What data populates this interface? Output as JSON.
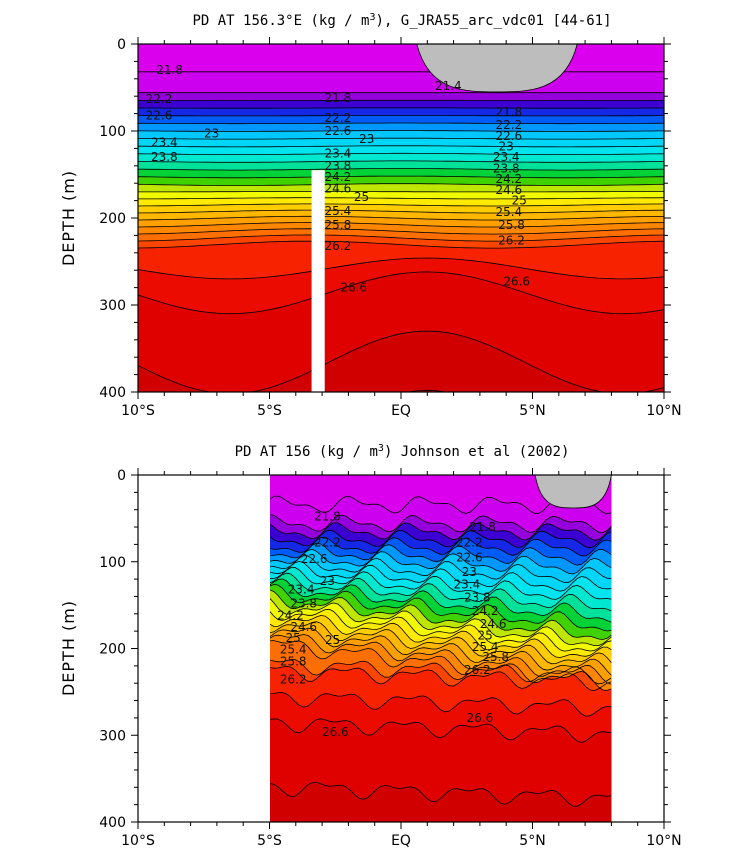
{
  "chart_data": [
    {
      "type": "contour",
      "title_text": "PD AT 156.3°E (kg / m",
      "title_sup": "3",
      "title_rest": "), G_JRA55_arc_vdc01 [44-61]",
      "ylabel": "DEPTH (m)",
      "xlim": [
        -10,
        10
      ],
      "ylim": [
        400,
        0
      ],
      "x_ticks": [
        {
          "value": -10,
          "label": "10°S"
        },
        {
          "value": -5,
          "label": "5°S"
        },
        {
          "value": 0,
          "label": "EQ"
        },
        {
          "value": 5,
          "label": "5°N"
        },
        {
          "value": 10,
          "label": "10°N"
        }
      ],
      "y_ticks": [
        {
          "value": 0,
          "label": "0"
        },
        {
          "value": 100,
          "label": "100"
        },
        {
          "value": 200,
          "label": "200"
        },
        {
          "value": 300,
          "label": "300"
        },
        {
          "value": 400,
          "label": "400"
        }
      ],
      "contour_interval": 0.2,
      "data_x_range": [
        -10,
        10
      ],
      "masked_column": {
        "x": [
          -3.4,
          -2.9
        ],
        "depth": [
          145,
          400
        ]
      },
      "land_patch": {
        "x": [
          0.6,
          6.7
        ],
        "depth": [
          0,
          55
        ]
      },
      "contour_labels": [
        {
          "x": -8.8,
          "depth": 30,
          "label": "21.8"
        },
        {
          "x": 1.8,
          "depth": 48,
          "label": "21.4"
        },
        {
          "x": -2.4,
          "depth": 62,
          "label": "21.8"
        },
        {
          "x": 4.1,
          "depth": 78,
          "label": "21.8"
        },
        {
          "x": -9.2,
          "depth": 63,
          "label": "22.2"
        },
        {
          "x": -9.2,
          "depth": 82,
          "label": "22.6"
        },
        {
          "x": -2.4,
          "depth": 85,
          "label": "22.2"
        },
        {
          "x": -2.4,
          "depth": 100,
          "label": "22.6"
        },
        {
          "x": 4.1,
          "depth": 93,
          "label": "22.2"
        },
        {
          "x": 4.1,
          "depth": 106,
          "label": "22.6"
        },
        {
          "x": -9.0,
          "depth": 113,
          "label": "23.4"
        },
        {
          "x": -7.2,
          "depth": 103,
          "label": "23"
        },
        {
          "x": -1.3,
          "depth": 109,
          "label": "23"
        },
        {
          "x": 4.0,
          "depth": 118,
          "label": "23"
        },
        {
          "x": -9.0,
          "depth": 130,
          "label": "23.8"
        },
        {
          "x": -2.4,
          "depth": 126,
          "label": "23.4"
        },
        {
          "x": -2.4,
          "depth": 140,
          "label": "23.8"
        },
        {
          "x": 4.0,
          "depth": 130,
          "label": "23.4"
        },
        {
          "x": 4.0,
          "depth": 143,
          "label": "23.8"
        },
        {
          "x": -2.4,
          "depth": 153,
          "label": "24.2"
        },
        {
          "x": -2.4,
          "depth": 166,
          "label": "24.6"
        },
        {
          "x": 4.1,
          "depth": 155,
          "label": "24.2"
        },
        {
          "x": 4.1,
          "depth": 168,
          "label": "24.6"
        },
        {
          "x": -1.5,
          "depth": 176,
          "label": "25"
        },
        {
          "x": 4.5,
          "depth": 180,
          "label": "25"
        },
        {
          "x": -2.4,
          "depth": 192,
          "label": "25.4"
        },
        {
          "x": 4.1,
          "depth": 193,
          "label": "25.4"
        },
        {
          "x": -2.4,
          "depth": 208,
          "label": "25.8"
        },
        {
          "x": 4.2,
          "depth": 208,
          "label": "25.8"
        },
        {
          "x": -2.4,
          "depth": 232,
          "label": "26.2"
        },
        {
          "x": 4.2,
          "depth": 226,
          "label": "26.2"
        },
        {
          "x": -1.8,
          "depth": 280,
          "label": "26.6"
        },
        {
          "x": 4.4,
          "depth": 273,
          "label": "26.6"
        }
      ]
    },
    {
      "type": "contour",
      "title_text": "PD AT 156 (kg / m",
      "title_sup": "3",
      "title_rest": ") Johnson et al (2002)",
      "ylabel": "DEPTH (m)",
      "xlim": [
        -10,
        10
      ],
      "ylim": [
        400,
        0
      ],
      "x_ticks": [
        {
          "value": -10,
          "label": "10°S"
        },
        {
          "value": -5,
          "label": "5°S"
        },
        {
          "value": 0,
          "label": "EQ"
        },
        {
          "value": 5,
          "label": "5°N"
        },
        {
          "value": 10,
          "label": "10°N"
        }
      ],
      "y_ticks": [
        {
          "value": 0,
          "label": "0"
        },
        {
          "value": 100,
          "label": "100"
        },
        {
          "value": 200,
          "label": "200"
        },
        {
          "value": 300,
          "label": "300"
        },
        {
          "value": 400,
          "label": "400"
        }
      ],
      "contour_interval": 0.2,
      "data_x_range": [
        -5,
        8
      ],
      "land_patch": {
        "x": [
          5.1,
          8.0
        ],
        "depth": [
          0,
          38
        ]
      },
      "contour_labels": [
        {
          "x": -2.8,
          "depth": 48,
          "label": "21.8"
        },
        {
          "x": 3.1,
          "depth": 60,
          "label": "21.8"
        },
        {
          "x": -2.8,
          "depth": 78,
          "label": "22.2"
        },
        {
          "x": 2.6,
          "depth": 78,
          "label": "22.2"
        },
        {
          "x": -3.3,
          "depth": 97,
          "label": "22.6"
        },
        {
          "x": 2.6,
          "depth": 95,
          "label": "22.6"
        },
        {
          "x": -2.8,
          "depth": 122,
          "label": "23"
        },
        {
          "x": 2.6,
          "depth": 112,
          "label": "23"
        },
        {
          "x": -3.8,
          "depth": 132,
          "label": "23.4"
        },
        {
          "x": 2.5,
          "depth": 126,
          "label": "23.4"
        },
        {
          "x": -3.7,
          "depth": 148,
          "label": "23.8"
        },
        {
          "x": 2.9,
          "depth": 141,
          "label": "23.8"
        },
        {
          "x": -4.2,
          "depth": 162,
          "label": "24.2"
        },
        {
          "x": 3.2,
          "depth": 157,
          "label": "24.2"
        },
        {
          "x": -3.7,
          "depth": 175,
          "label": "24.6"
        },
        {
          "x": 3.5,
          "depth": 172,
          "label": "24.6"
        },
        {
          "x": -4.1,
          "depth": 188,
          "label": "25"
        },
        {
          "x": -2.6,
          "depth": 190,
          "label": "25"
        },
        {
          "x": 3.2,
          "depth": 185,
          "label": "25"
        },
        {
          "x": -4.1,
          "depth": 201,
          "label": "25.4"
        },
        {
          "x": 3.2,
          "depth": 198,
          "label": "25.4"
        },
        {
          "x": -4.1,
          "depth": 215,
          "label": "25.8"
        },
        {
          "x": 3.6,
          "depth": 210,
          "label": "25.8"
        },
        {
          "x": -4.1,
          "depth": 236,
          "label": "26.2"
        },
        {
          "x": 2.9,
          "depth": 225,
          "label": "26.2"
        },
        {
          "x": -2.5,
          "depth": 296,
          "label": "26.6"
        },
        {
          "x": 3.0,
          "depth": 280,
          "label": "26.6"
        }
      ]
    }
  ]
}
